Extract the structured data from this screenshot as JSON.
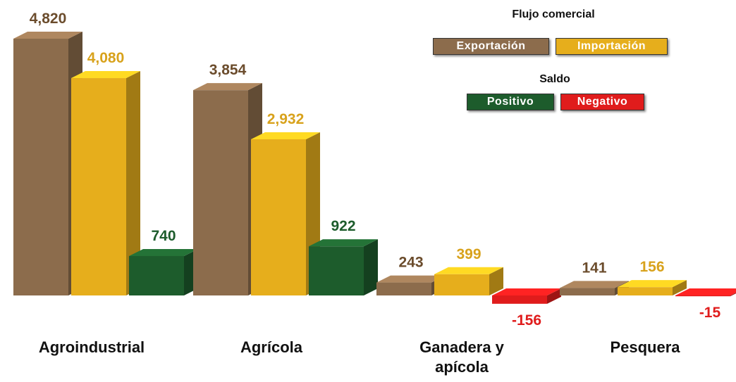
{
  "chart_data": {
    "type": "bar3d",
    "legend_title": "Flujo comercial",
    "categories": [
      "Agroindustrial",
      "Agrícola",
      "Ganadera y apícola",
      "Pesquera"
    ],
    "series": [
      {
        "name": "Exportación",
        "color": "#8c6c4c",
        "label_color": "#6b4c2c",
        "values": [
          4820,
          3854,
          243,
          141
        ],
        "value_labels": [
          "4,820",
          "3,854",
          "243",
          "141"
        ]
      },
      {
        "name": "Importación",
        "color": "#e6ae1c",
        "label_color": "#d8a21c",
        "values": [
          4080,
          2932,
          399,
          156
        ],
        "value_labels": [
          "4,080",
          "2,932",
          "399",
          "156"
        ]
      },
      {
        "name": "Saldo",
        "positive_color": "#1d5c2c",
        "negative_color": "#e01c1c",
        "positive_label": "Positivo",
        "negative_label": "Negativo",
        "values": [
          740,
          922,
          -156,
          -15
        ]
      }
    ]
  }
}
